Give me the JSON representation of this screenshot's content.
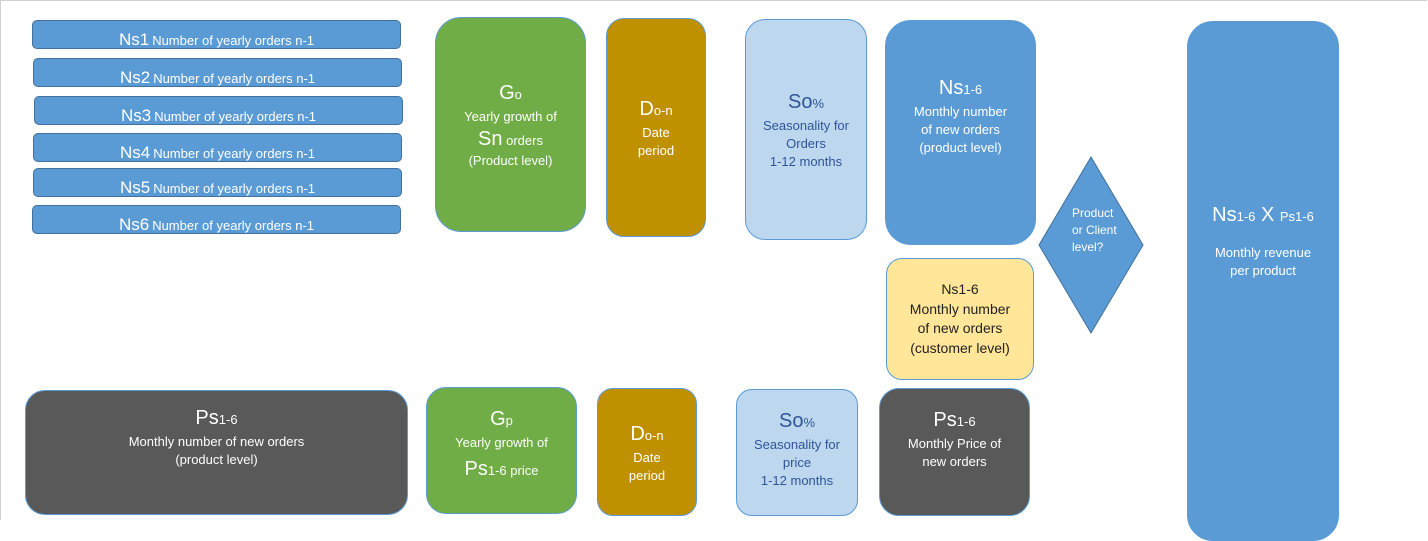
{
  "colors": {
    "blue": "#5b9bd5",
    "green": "#70ad47",
    "gold": "#bf9000",
    "light_blue": "#bdd7ee",
    "yellow": "#ffe699",
    "dark_gray": "#595959"
  },
  "yearly_bars": [
    {
      "symbol": "Ns1",
      "label": "Number of yearly orders n-1"
    },
    {
      "symbol": "Ns2",
      "label": "Number of  yearly  orders n-1"
    },
    {
      "symbol": "Ns3",
      "label": "Number of  yearly orders n-1"
    },
    {
      "symbol": "Ns4",
      "label": "Number of  yearly  orders n-1"
    },
    {
      "symbol": "Ns5",
      "label": "Number of  yearly  orders n-1"
    },
    {
      "symbol": "Ns6",
      "label": "Number of  yearly  orders n-1"
    }
  ],
  "growth_orders": {
    "main": "G",
    "sub": "o",
    "line1": "Yearly growth of",
    "sym2": "Sn",
    "line2": "orders",
    "line3": "(Product level)"
  },
  "date_top": {
    "main": "D",
    "sub": "o-n",
    "line1": "Date",
    "line2": "period"
  },
  "season_orders": {
    "main": "So",
    "sub": "%",
    "line1": "Seasonality for",
    "line2": "Orders",
    "line3": "1-12 months"
  },
  "monthly_product": {
    "main": "Ns",
    "sub": "1-6",
    "line1": "Monthly  number",
    "line2": "of new orders",
    "line3": "(product level)"
  },
  "monthly_customer": {
    "title": "Ns1-6",
    "line1": "Monthly  number",
    "line2": "of new orders",
    "line3": "(customer level)"
  },
  "decision": {
    "line1": "Product",
    "line2": "or Client",
    "line3": "level?"
  },
  "revenue": {
    "main1": "Ns",
    "sub1": "1-6",
    "x": " X ",
    "main2": "Ps1-6",
    "line1": "Monthly revenue",
    "line2": "per product"
  },
  "price_left": {
    "main": "Ps",
    "sub": "1-6",
    "line1": "Monthly  number of new orders",
    "line2": "(product level)"
  },
  "growth_price": {
    "main": "G",
    "sub": "p",
    "line1": "Yearly growth of",
    "sym2": "Ps",
    "sub2": "1-6",
    "line2": "price"
  },
  "date_bottom": {
    "main": "D",
    "sub": "o-n",
    "line1": "Date",
    "line2": "period"
  },
  "season_price": {
    "main": "So",
    "sub": "%",
    "line1": "Seasonality for",
    "line2": "price",
    "line3": "1-12 months"
  },
  "price_right": {
    "main": "Ps",
    "sub": "1-6",
    "line1": "Monthly  Price of",
    "line2": "new orders"
  }
}
